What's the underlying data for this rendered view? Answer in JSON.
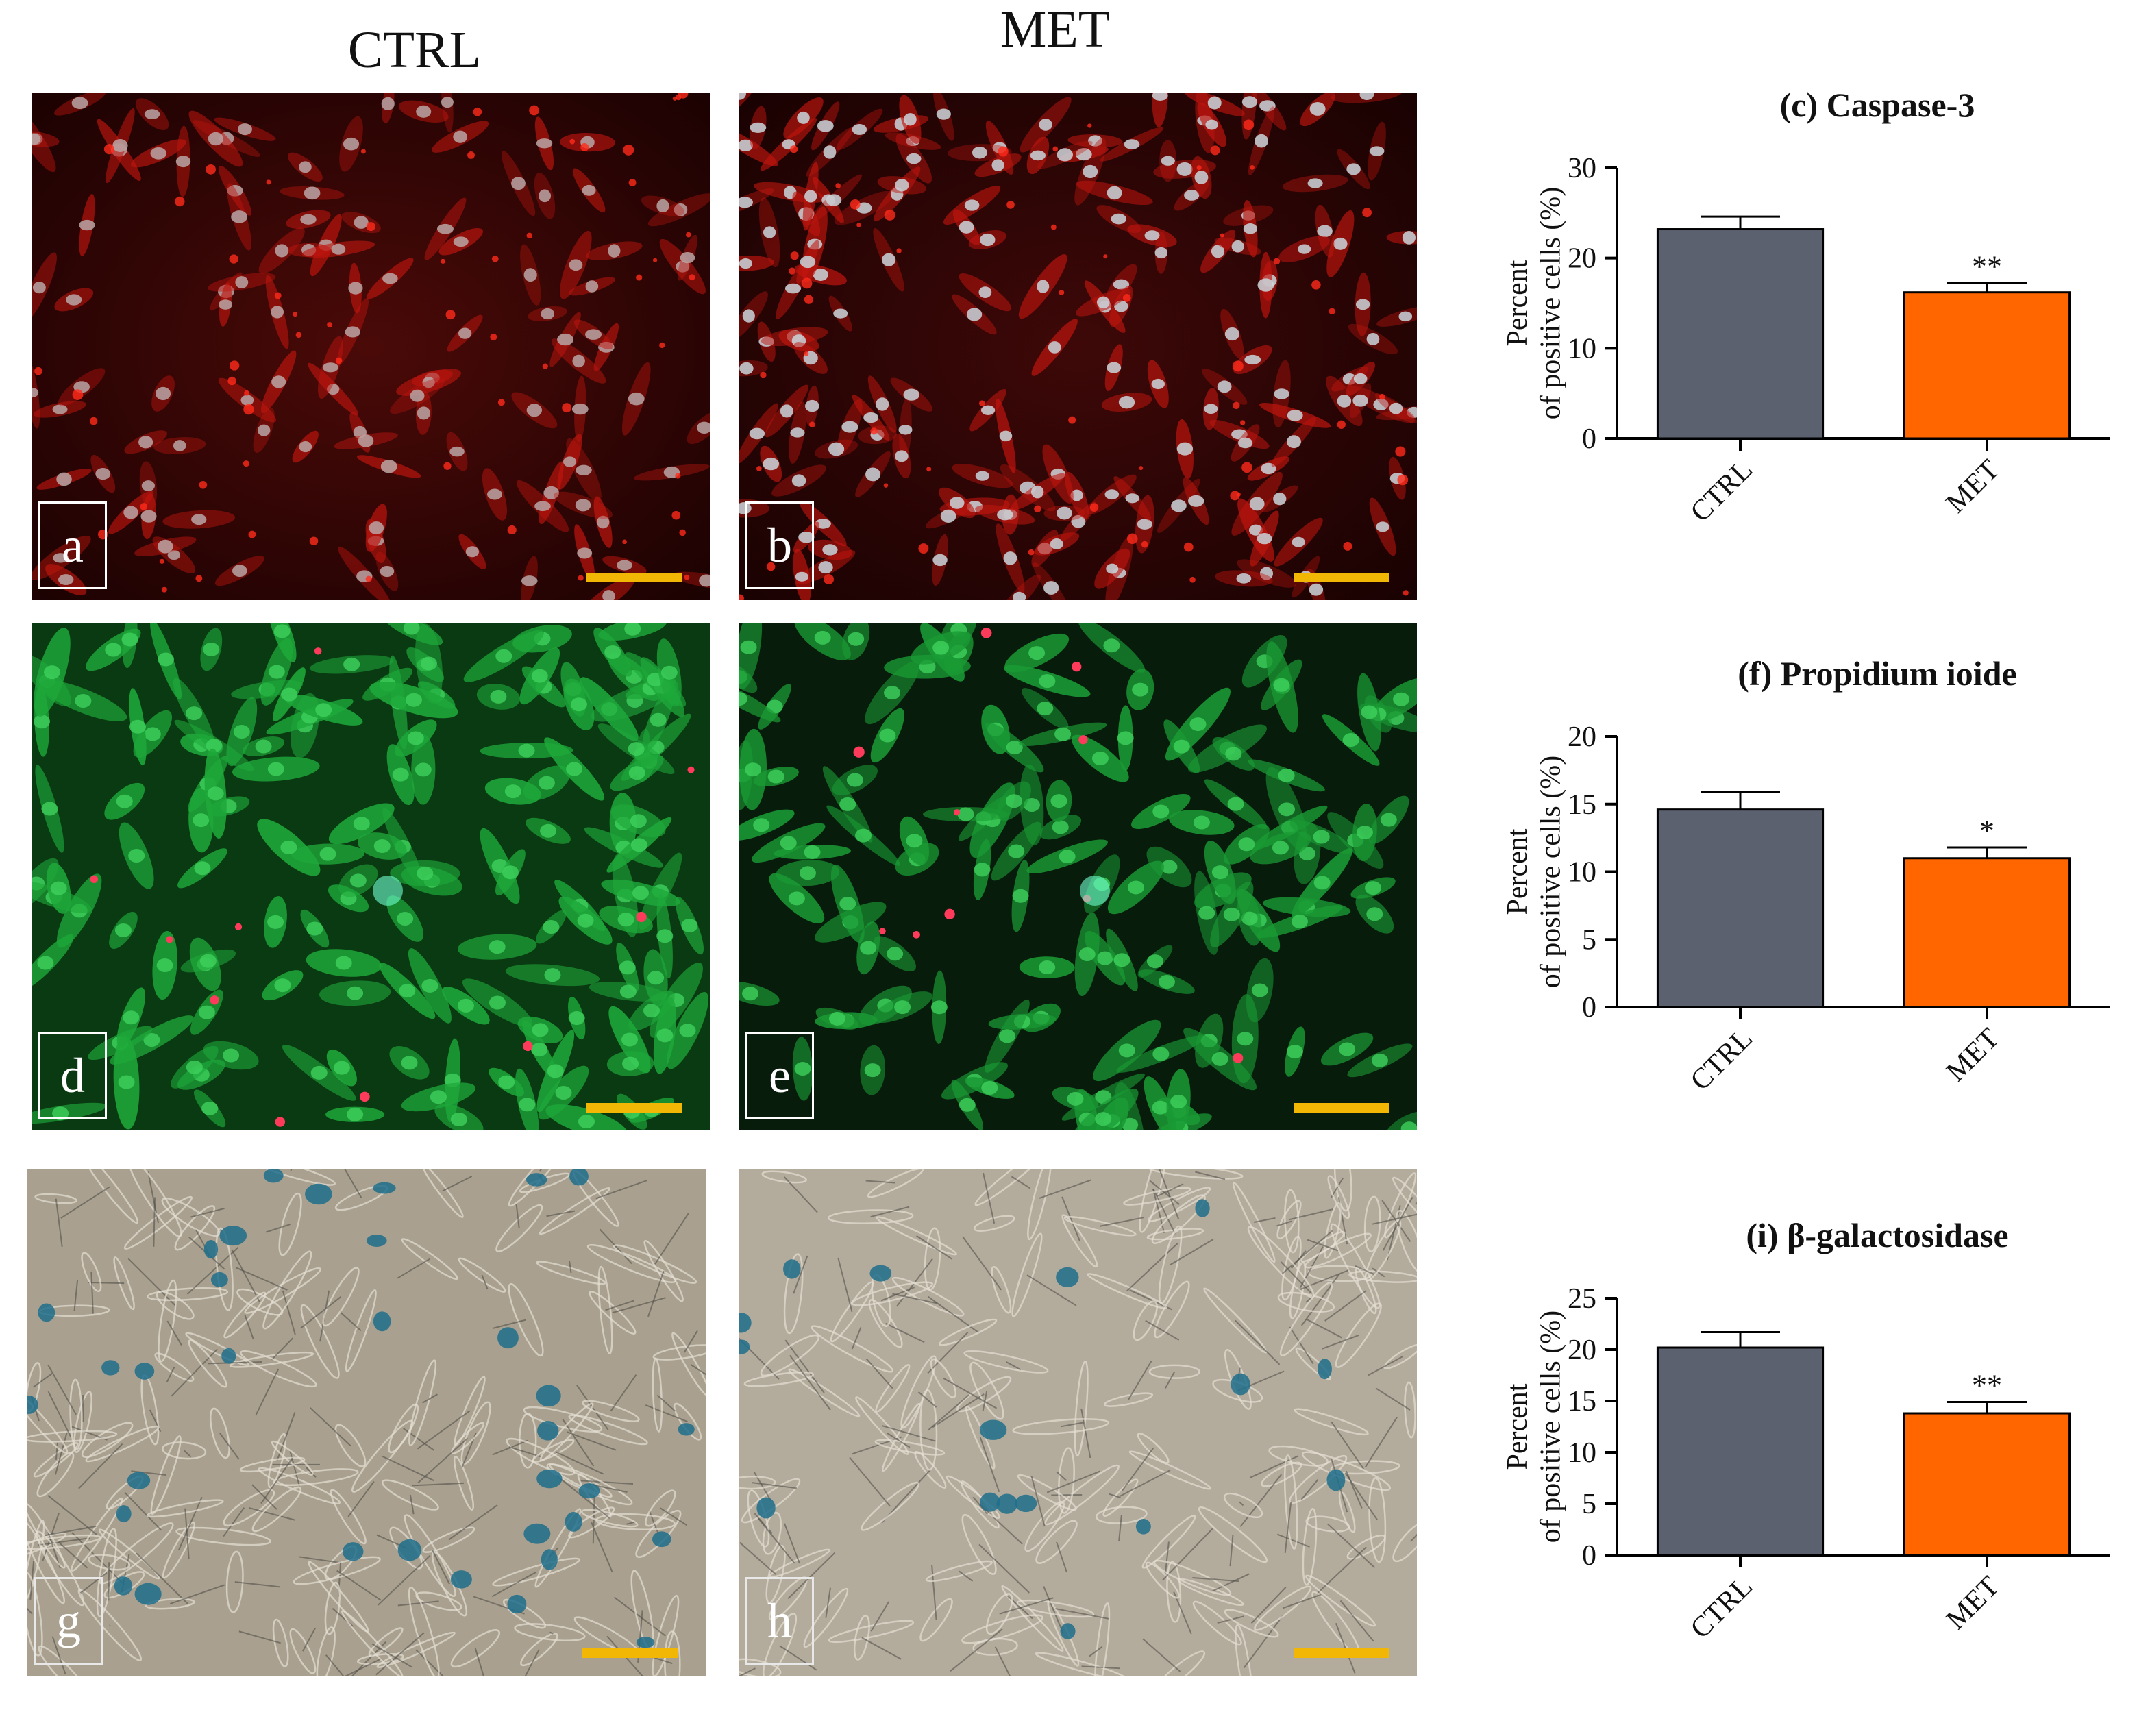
{
  "columns": {
    "ctrl": "CTRL",
    "met": "MET"
  },
  "panels": [
    {
      "id": "a",
      "label": "a",
      "stain": "caspase"
    },
    {
      "id": "b",
      "label": "b",
      "stain": "caspase"
    },
    {
      "id": "d",
      "label": "d",
      "stain": "pi"
    },
    {
      "id": "e",
      "label": "e",
      "stain": "pi"
    },
    {
      "id": "g",
      "label": "g",
      "stain": "bgal"
    },
    {
      "id": "h",
      "label": "h",
      "stain": "bgal"
    }
  ],
  "colors": {
    "ctrl_bar": "#5c6170",
    "met_bar": "#ff6600",
    "scale_bar": "#f2b705"
  },
  "chart_data": [
    {
      "type": "bar",
      "title": "(c) Caspase-3",
      "ylabel_line1": "Percent",
      "ylabel_line2": "of positive cells (%)",
      "categories": [
        "CTRL",
        "MET"
      ],
      "values": [
        23.2,
        16.2
      ],
      "errors": [
        1.4,
        1.0
      ],
      "significance": [
        "",
        "**"
      ],
      "ylim": [
        0,
        30
      ],
      "yticks": [
        0,
        10,
        20,
        30
      ]
    },
    {
      "type": "bar",
      "title": "(f) Propidium ioide",
      "ylabel_line1": "Percent",
      "ylabel_line2": "of positive cells (%)",
      "categories": [
        "CTRL",
        "MET"
      ],
      "values": [
        14.6,
        11.0
      ],
      "errors": [
        1.3,
        0.8
      ],
      "significance": [
        "",
        "*"
      ],
      "ylim": [
        0,
        20
      ],
      "yticks": [
        0,
        5,
        10,
        15,
        20
      ]
    },
    {
      "type": "bar",
      "title": "(i) β-galactosidase",
      "ylabel_line1": "Percent",
      "ylabel_line2": "of positive cells (%)",
      "categories": [
        "CTRL",
        "MET"
      ],
      "values": [
        20.2,
        13.8
      ],
      "errors": [
        1.5,
        1.1
      ],
      "significance": [
        "",
        "**"
      ],
      "ylim": [
        0,
        25
      ],
      "yticks": [
        0,
        5,
        10,
        15,
        20,
        25
      ]
    }
  ]
}
